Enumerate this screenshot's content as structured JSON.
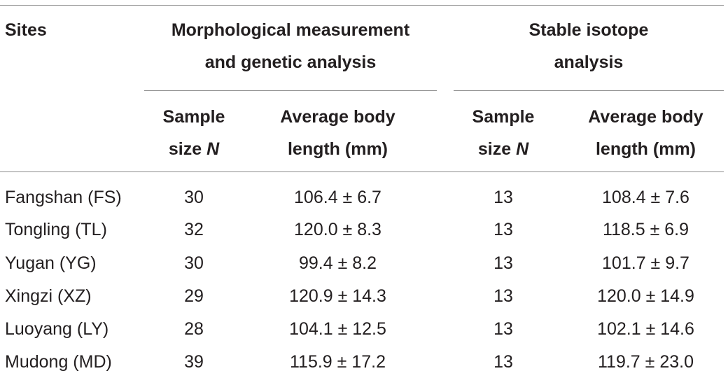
{
  "table": {
    "header": {
      "sites": "Sites",
      "group1_line1": "Morphological measurement",
      "group1_line2": "and genetic analysis",
      "group2_line1": "Stable isotope",
      "group2_line2": "analysis",
      "sample_line1": "Sample",
      "sample_line2_prefix": "size ",
      "sample_line2_var": "N",
      "length_line1": "Average body",
      "length_line2": "length (mm)"
    },
    "rows": [
      {
        "site": "Fangshan (FS)",
        "n1": "30",
        "len1": "106.4 ± 6.7",
        "n2": "13",
        "len2": "108.4 ± 7.6"
      },
      {
        "site": "Tongling (TL)",
        "n1": "32",
        "len1": "120.0 ± 8.3",
        "n2": "13",
        "len2": "118.5 ± 6.9"
      },
      {
        "site": "Yugan (YG)",
        "n1": "30",
        "len1": "99.4 ± 8.2",
        "n2": "13",
        "len2": "101.7 ± 9.7"
      },
      {
        "site": "Xingzi (XZ)",
        "n1": "29",
        "len1": "120.9 ± 14.3",
        "n2": "13",
        "len2": "120.0 ± 14.9"
      },
      {
        "site": "Luoyang (LY)",
        "n1": "28",
        "len1": "104.1 ± 12.5",
        "n2": "13",
        "len2": "102.1 ± 14.6"
      },
      {
        "site": "Mudong (MD)",
        "n1": "39",
        "len1": "115.9 ± 17.2",
        "n2": "13",
        "len2": "119.7 ± 23.0"
      }
    ]
  }
}
